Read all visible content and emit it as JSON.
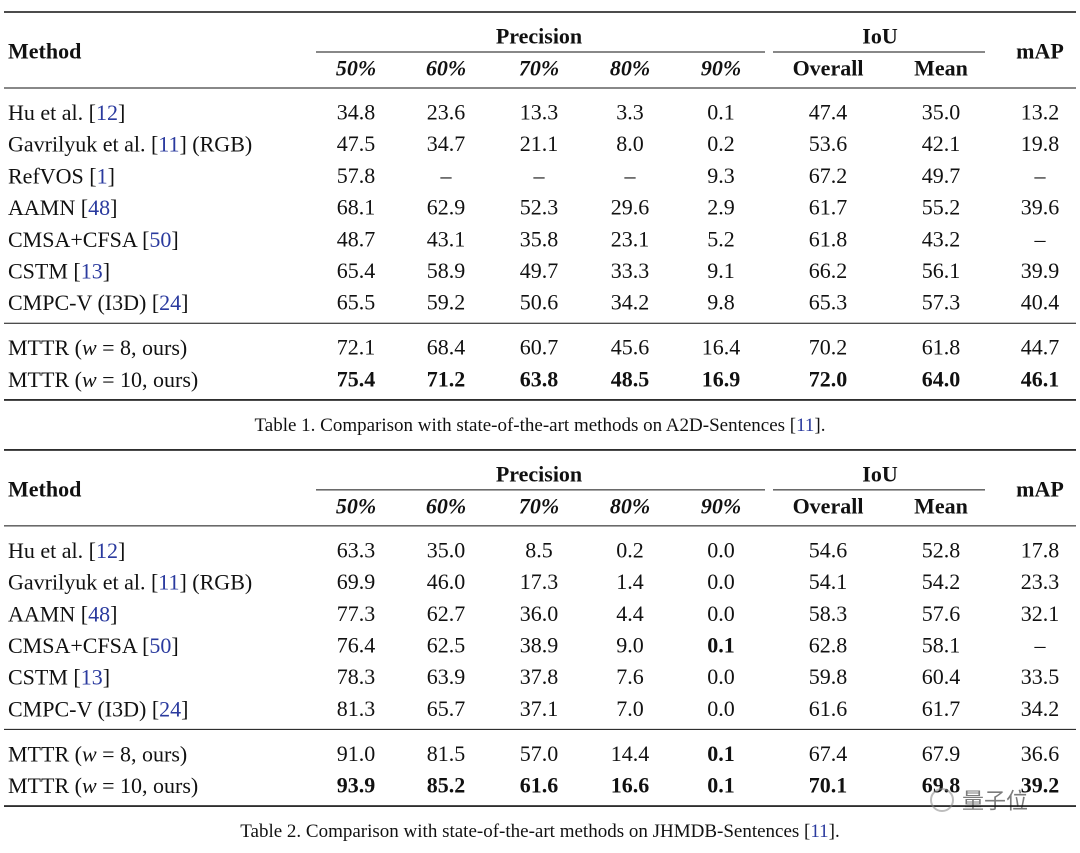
{
  "headers": {
    "method": "Method",
    "precision": "Precision",
    "iou": "IoU",
    "map": "mAP",
    "sub": [
      "50%",
      "60%",
      "70%",
      "80%",
      "90%",
      "Overall",
      "Mean"
    ]
  },
  "tables": [
    {
      "groups": [
        [
          {
            "method": [
              {
                "text": "Hu et al. ["
              },
              {
                "text": "12",
                "link": true
              },
              {
                "text": "]"
              }
            ],
            "cells": [
              "34.8",
              "23.6",
              "13.3",
              "3.3",
              "0.1",
              "47.4",
              "35.0",
              "13.2"
            ]
          },
          {
            "method": [
              {
                "text": "Gavrilyuk et al. ["
              },
              {
                "text": "11",
                "link": true
              },
              {
                "text": "] (RGB)"
              }
            ],
            "cells": [
              "47.5",
              "34.7",
              "21.1",
              "8.0",
              "0.2",
              "53.6",
              "42.1",
              "19.8"
            ]
          },
          {
            "method": [
              {
                "text": "RefVOS ["
              },
              {
                "text": "1",
                "link": true
              },
              {
                "text": "]"
              }
            ],
            "cells": [
              "57.8",
              "–",
              "–",
              "–",
              "9.3",
              "67.2",
              "49.7",
              "–"
            ]
          },
          {
            "method": [
              {
                "text": "AAMN ["
              },
              {
                "text": "48",
                "link": true
              },
              {
                "text": "]"
              }
            ],
            "cells": [
              "68.1",
              "62.9",
              "52.3",
              "29.6",
              "2.9",
              "61.7",
              "55.2",
              "39.6"
            ]
          },
          {
            "method": [
              {
                "text": "CMSA+CFSA ["
              },
              {
                "text": "50",
                "link": true
              },
              {
                "text": "]"
              }
            ],
            "cells": [
              "48.7",
              "43.1",
              "35.8",
              "23.1",
              "5.2",
              "61.8",
              "43.2",
              "–"
            ]
          },
          {
            "method": [
              {
                "text": "CSTM ["
              },
              {
                "text": "13",
                "link": true
              },
              {
                "text": "]"
              }
            ],
            "cells": [
              "65.4",
              "58.9",
              "49.7",
              "33.3",
              "9.1",
              "66.2",
              "56.1",
              "39.9"
            ]
          },
          {
            "method": [
              {
                "text": "CMPC-V (I3D) ["
              },
              {
                "text": "24",
                "link": true
              },
              {
                "text": "]"
              }
            ],
            "cells": [
              "65.5",
              "59.2",
              "50.6",
              "34.2",
              "9.8",
              "65.3",
              "57.3",
              "40.4"
            ]
          }
        ],
        [
          {
            "method": [
              {
                "text": "MTTR ("
              },
              {
                "text": "w",
                "italic": true
              },
              {
                "text": " = 8, ours)"
              }
            ],
            "cells": [
              "72.1",
              "68.4",
              "60.7",
              "45.6",
              "16.4",
              "70.2",
              "61.8",
              "44.7"
            ]
          },
          {
            "method": [
              {
                "text": "MTTR ("
              },
              {
                "text": "w",
                "italic": true
              },
              {
                "text": " = 10, ours)"
              }
            ],
            "cells": [
              "75.4",
              "71.2",
              "63.8",
              "48.5",
              "16.9",
              "72.0",
              "64.0",
              "46.1"
            ],
            "bold_cells": [
              0,
              1,
              2,
              3,
              4,
              5,
              6,
              7
            ]
          }
        ]
      ],
      "caption": [
        {
          "text": "Table 1. Comparison with state-of-the-art methods on A2D-Sentences ["
        },
        {
          "text": "11",
          "link": true
        },
        {
          "text": "]."
        }
      ]
    },
    {
      "groups": [
        [
          {
            "method": [
              {
                "text": "Hu et al. ["
              },
              {
                "text": "12",
                "link": true
              },
              {
                "text": "]"
              }
            ],
            "cells": [
              "63.3",
              "35.0",
              "8.5",
              "0.2",
              "0.0",
              "54.6",
              "52.8",
              "17.8"
            ]
          },
          {
            "method": [
              {
                "text": "Gavrilyuk et al. ["
              },
              {
                "text": "11",
                "link": true
              },
              {
                "text": "] (RGB)"
              }
            ],
            "cells": [
              "69.9",
              "46.0",
              "17.3",
              "1.4",
              "0.0",
              "54.1",
              "54.2",
              "23.3"
            ]
          },
          {
            "method": [
              {
                "text": "AAMN ["
              },
              {
                "text": "48",
                "link": true
              },
              {
                "text": "]"
              }
            ],
            "cells": [
              "77.3",
              "62.7",
              "36.0",
              "4.4",
              "0.0",
              "58.3",
              "57.6",
              "32.1"
            ]
          },
          {
            "method": [
              {
                "text": "CMSA+CFSA ["
              },
              {
                "text": "50",
                "link": true
              },
              {
                "text": "]"
              }
            ],
            "cells": [
              "76.4",
              "62.5",
              "38.9",
              "9.0",
              "0.1",
              "62.8",
              "58.1",
              "–"
            ],
            "bold_cells": [
              4
            ]
          },
          {
            "method": [
              {
                "text": "CSTM ["
              },
              {
                "text": "13",
                "link": true
              },
              {
                "text": "]"
              }
            ],
            "cells": [
              "78.3",
              "63.9",
              "37.8",
              "7.6",
              "0.0",
              "59.8",
              "60.4",
              "33.5"
            ]
          },
          {
            "method": [
              {
                "text": "CMPC-V (I3D) ["
              },
              {
                "text": "24",
                "link": true
              },
              {
                "text": "]"
              }
            ],
            "cells": [
              "81.3",
              "65.7",
              "37.1",
              "7.0",
              "0.0",
              "61.6",
              "61.7",
              "34.2"
            ]
          }
        ],
        [
          {
            "method": [
              {
                "text": "MTTR ("
              },
              {
                "text": "w",
                "italic": true
              },
              {
                "text": " = 8, ours)"
              }
            ],
            "cells": [
              "91.0",
              "81.5",
              "57.0",
              "14.4",
              "0.1",
              "67.4",
              "67.9",
              "36.6"
            ],
            "bold_cells": [
              4
            ]
          },
          {
            "method": [
              {
                "text": "MTTR ("
              },
              {
                "text": "w",
                "italic": true
              },
              {
                "text": " = 10, ours)"
              }
            ],
            "cells": [
              "93.9",
              "85.2",
              "61.6",
              "16.6",
              "0.1",
              "70.1",
              "69.8",
              "39.2"
            ],
            "bold_cells": [
              0,
              1,
              2,
              3,
              4,
              5,
              6,
              7
            ]
          }
        ]
      ],
      "caption": [
        {
          "text": "Table 2. Comparison with state-of-the-art methods on JHMDB-Sentences ["
        },
        {
          "text": "11",
          "link": true
        },
        {
          "text": "]."
        }
      ]
    }
  ],
  "watermark": "量子位"
}
